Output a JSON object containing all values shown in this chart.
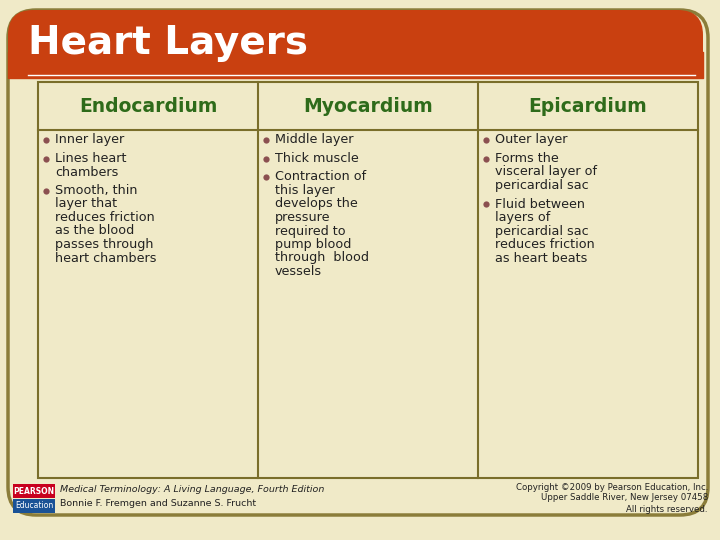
{
  "title": "Heart Layers",
  "title_color": "#FFFFFF",
  "title_bg_color": "#C94010",
  "bg_color": "#F0EAC8",
  "table_bg_color": "#F5F0D8",
  "table_border_color": "#7A6E2A",
  "header_text_color": "#2E6B1A",
  "body_text_color": "#222222",
  "bullet_color": "#8B5050",
  "scroll_border_color": "#8B7D3A",
  "headers": [
    "Endocardium",
    "Myocardium",
    "Epicardium"
  ],
  "col1_bullets": [
    [
      "Inner layer"
    ],
    [
      "Lines heart",
      "  chambers"
    ],
    [
      "Smooth, thin",
      "  layer that",
      "  reduces friction",
      "  as the blood",
      "  passes through",
      "  heart chambers"
    ]
  ],
  "col2_bullets": [
    [
      "Middle layer"
    ],
    [
      "Thick muscle"
    ],
    [
      "Contraction of",
      "  this layer",
      "  develops the",
      "  pressure",
      "  required to",
      "  pump blood",
      "  through  blood",
      "  vessels"
    ]
  ],
  "col3_bullets": [
    [
      "Outer layer"
    ],
    [
      "Forms the",
      "  visceral layer of",
      "  pericardial sac"
    ],
    [
      "Fluid between",
      "  layers of",
      "  pericardial sac",
      "  reduces friction",
      "  as heart beats"
    ]
  ],
  "footer_left_italic": "Medical Terminology: A Living Language, Fourth Edition",
  "footer_left_normal": "Bonnie F. Fremgen and Suzanne S. Frucht",
  "footer_right_line1": "Copyright ©2009 by Pearson Education, Inc.",
  "footer_right_line2": "Upper Saddle River, New Jersey 07458",
  "footer_right_line3": "All rights reserved.",
  "pearson_box_color": "#C8001E",
  "education_box_color": "#1A5296"
}
